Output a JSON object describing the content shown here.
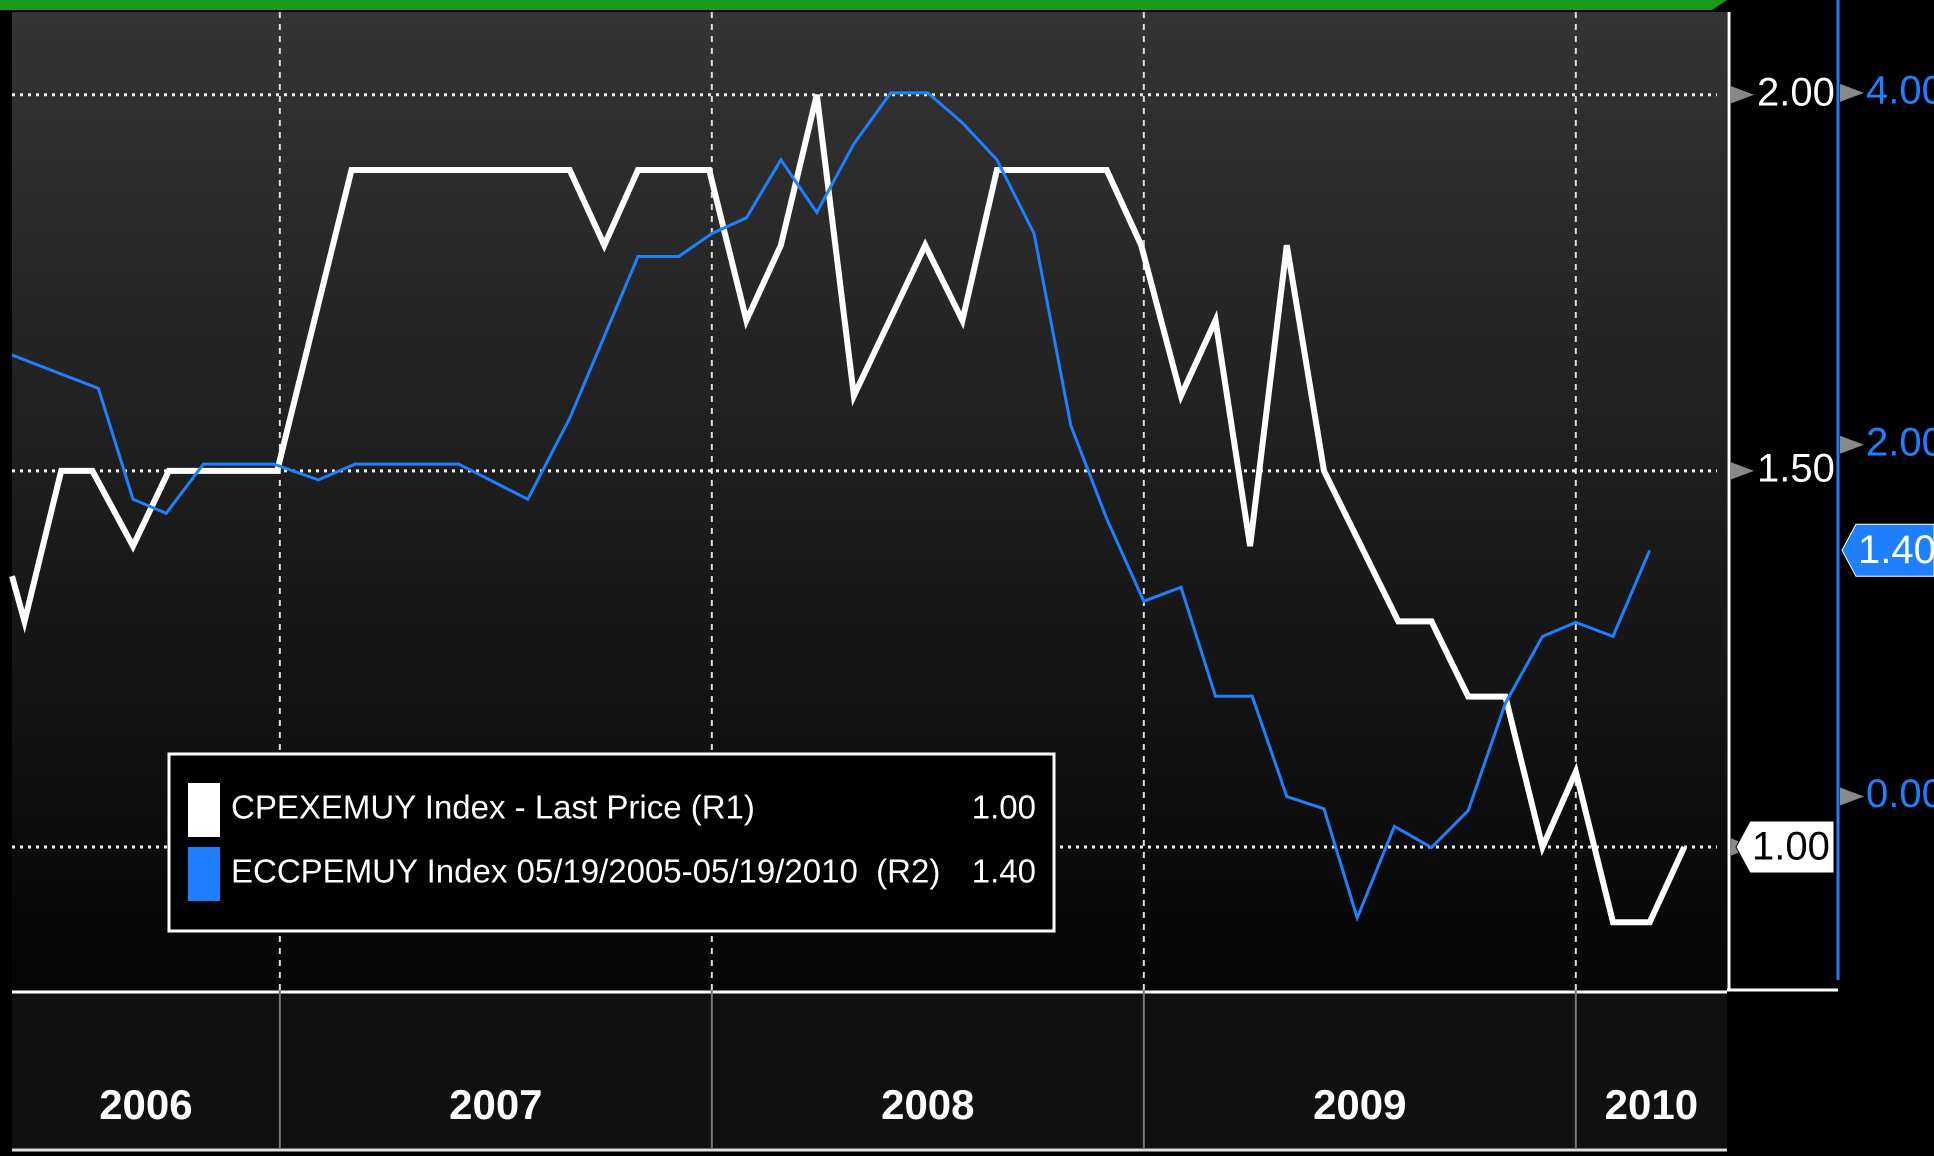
{
  "chart_data": {
    "type": "line",
    "xlim": [
      2006.38,
      2010.35
    ],
    "xticks": [
      {
        "value": 2006,
        "label": "2006"
      },
      {
        "value": 2007,
        "label": "2007"
      },
      {
        "value": 2008,
        "label": "2008"
      },
      {
        "value": 2009,
        "label": "2009"
      },
      {
        "value": 2010,
        "label": "2010"
      }
    ],
    "ylim": [
      0.81,
      2.11
    ],
    "yticks": [
      {
        "value": 1,
        "label": "1.00"
      },
      {
        "value": 1.5,
        "label": "1.50"
      },
      {
        "value": 2,
        "label": "2.00"
      }
    ],
    "y2lim": [
      -1.1,
      4.46
    ],
    "y2ticks": [
      {
        "value": 0,
        "label": "0.00"
      },
      {
        "value": 2,
        "label": "2.00"
      },
      {
        "value": 4,
        "label": "4.00"
      }
    ],
    "grid": true,
    "series": [
      {
        "name": "CPEXEMUY Index - Last Price (R1)",
        "color": "#ffffff",
        "axis": "y",
        "last_value_label": "1.00",
        "x": [
          2006.38,
          2006.409,
          2006.494,
          2006.566,
          2006.66,
          2006.743,
          2006.994,
          2007.166,
          2007.671,
          2007.751,
          2007.829,
          2007.994,
          2008.08,
          2008.16,
          2008.243,
          2008.329,
          2008.494,
          2008.58,
          2008.66,
          2008.914,
          2008.994,
          2009.086,
          2009.166,
          2009.246,
          2009.331,
          2009.417,
          2009.589,
          2009.666,
          2009.751,
          2009.837,
          2009.923,
          2010.0,
          2010.086,
          2010.171,
          2010.251
        ],
        "values": [
          1.36,
          1.3,
          1.5,
          1.5,
          1.4,
          1.5,
          1.5,
          1.9,
          1.9,
          1.8,
          1.9,
          1.9,
          1.7,
          1.8,
          2.0,
          1.6,
          1.8,
          1.7,
          1.9,
          1.9,
          1.8,
          1.6,
          1.7,
          1.4,
          1.8,
          1.5,
          1.3,
          1.3,
          1.2,
          1.2,
          1.0,
          1.1,
          0.9,
          0.9,
          1.0
        ]
      },
      {
        "name": "ECCPEMUY Index 05/19/2005-05/19/2010  (R2)",
        "color": "#1e7fff",
        "axis": "y2",
        "last_value_label": "1.40",
        "x": [
          2006.38,
          2006.58,
          2006.66,
          2006.737,
          2006.823,
          2006.986,
          2007.089,
          2007.174,
          2007.414,
          2007.574,
          2007.671,
          2007.829,
          2007.923,
          2008.0,
          2008.08,
          2008.16,
          2008.243,
          2008.329,
          2008.414,
          2008.5,
          2008.58,
          2008.66,
          2008.746,
          2008.831,
          2008.914,
          2009.0,
          2009.086,
          2009.166,
          2009.251,
          2009.331,
          2009.417,
          2009.494,
          2009.58,
          2009.666,
          2009.751,
          2009.837,
          2009.923,
          2010.0,
          2010.086,
          2010.171
        ],
        "values": [
          2.51,
          2.32,
          1.69,
          1.61,
          1.89,
          1.89,
          1.8,
          1.89,
          1.89,
          1.69,
          2.15,
          3.07,
          3.07,
          3.2,
          3.29,
          3.62,
          3.32,
          3.71,
          4.0,
          4.0,
          3.83,
          3.62,
          3.2,
          2.11,
          1.58,
          1.11,
          1.19,
          0.57,
          0.57,
          0.0,
          -0.07,
          -0.69,
          -0.17,
          -0.29,
          -0.08,
          0.53,
          0.91,
          0.99,
          0.91,
          1.4
        ]
      }
    ]
  }
}
